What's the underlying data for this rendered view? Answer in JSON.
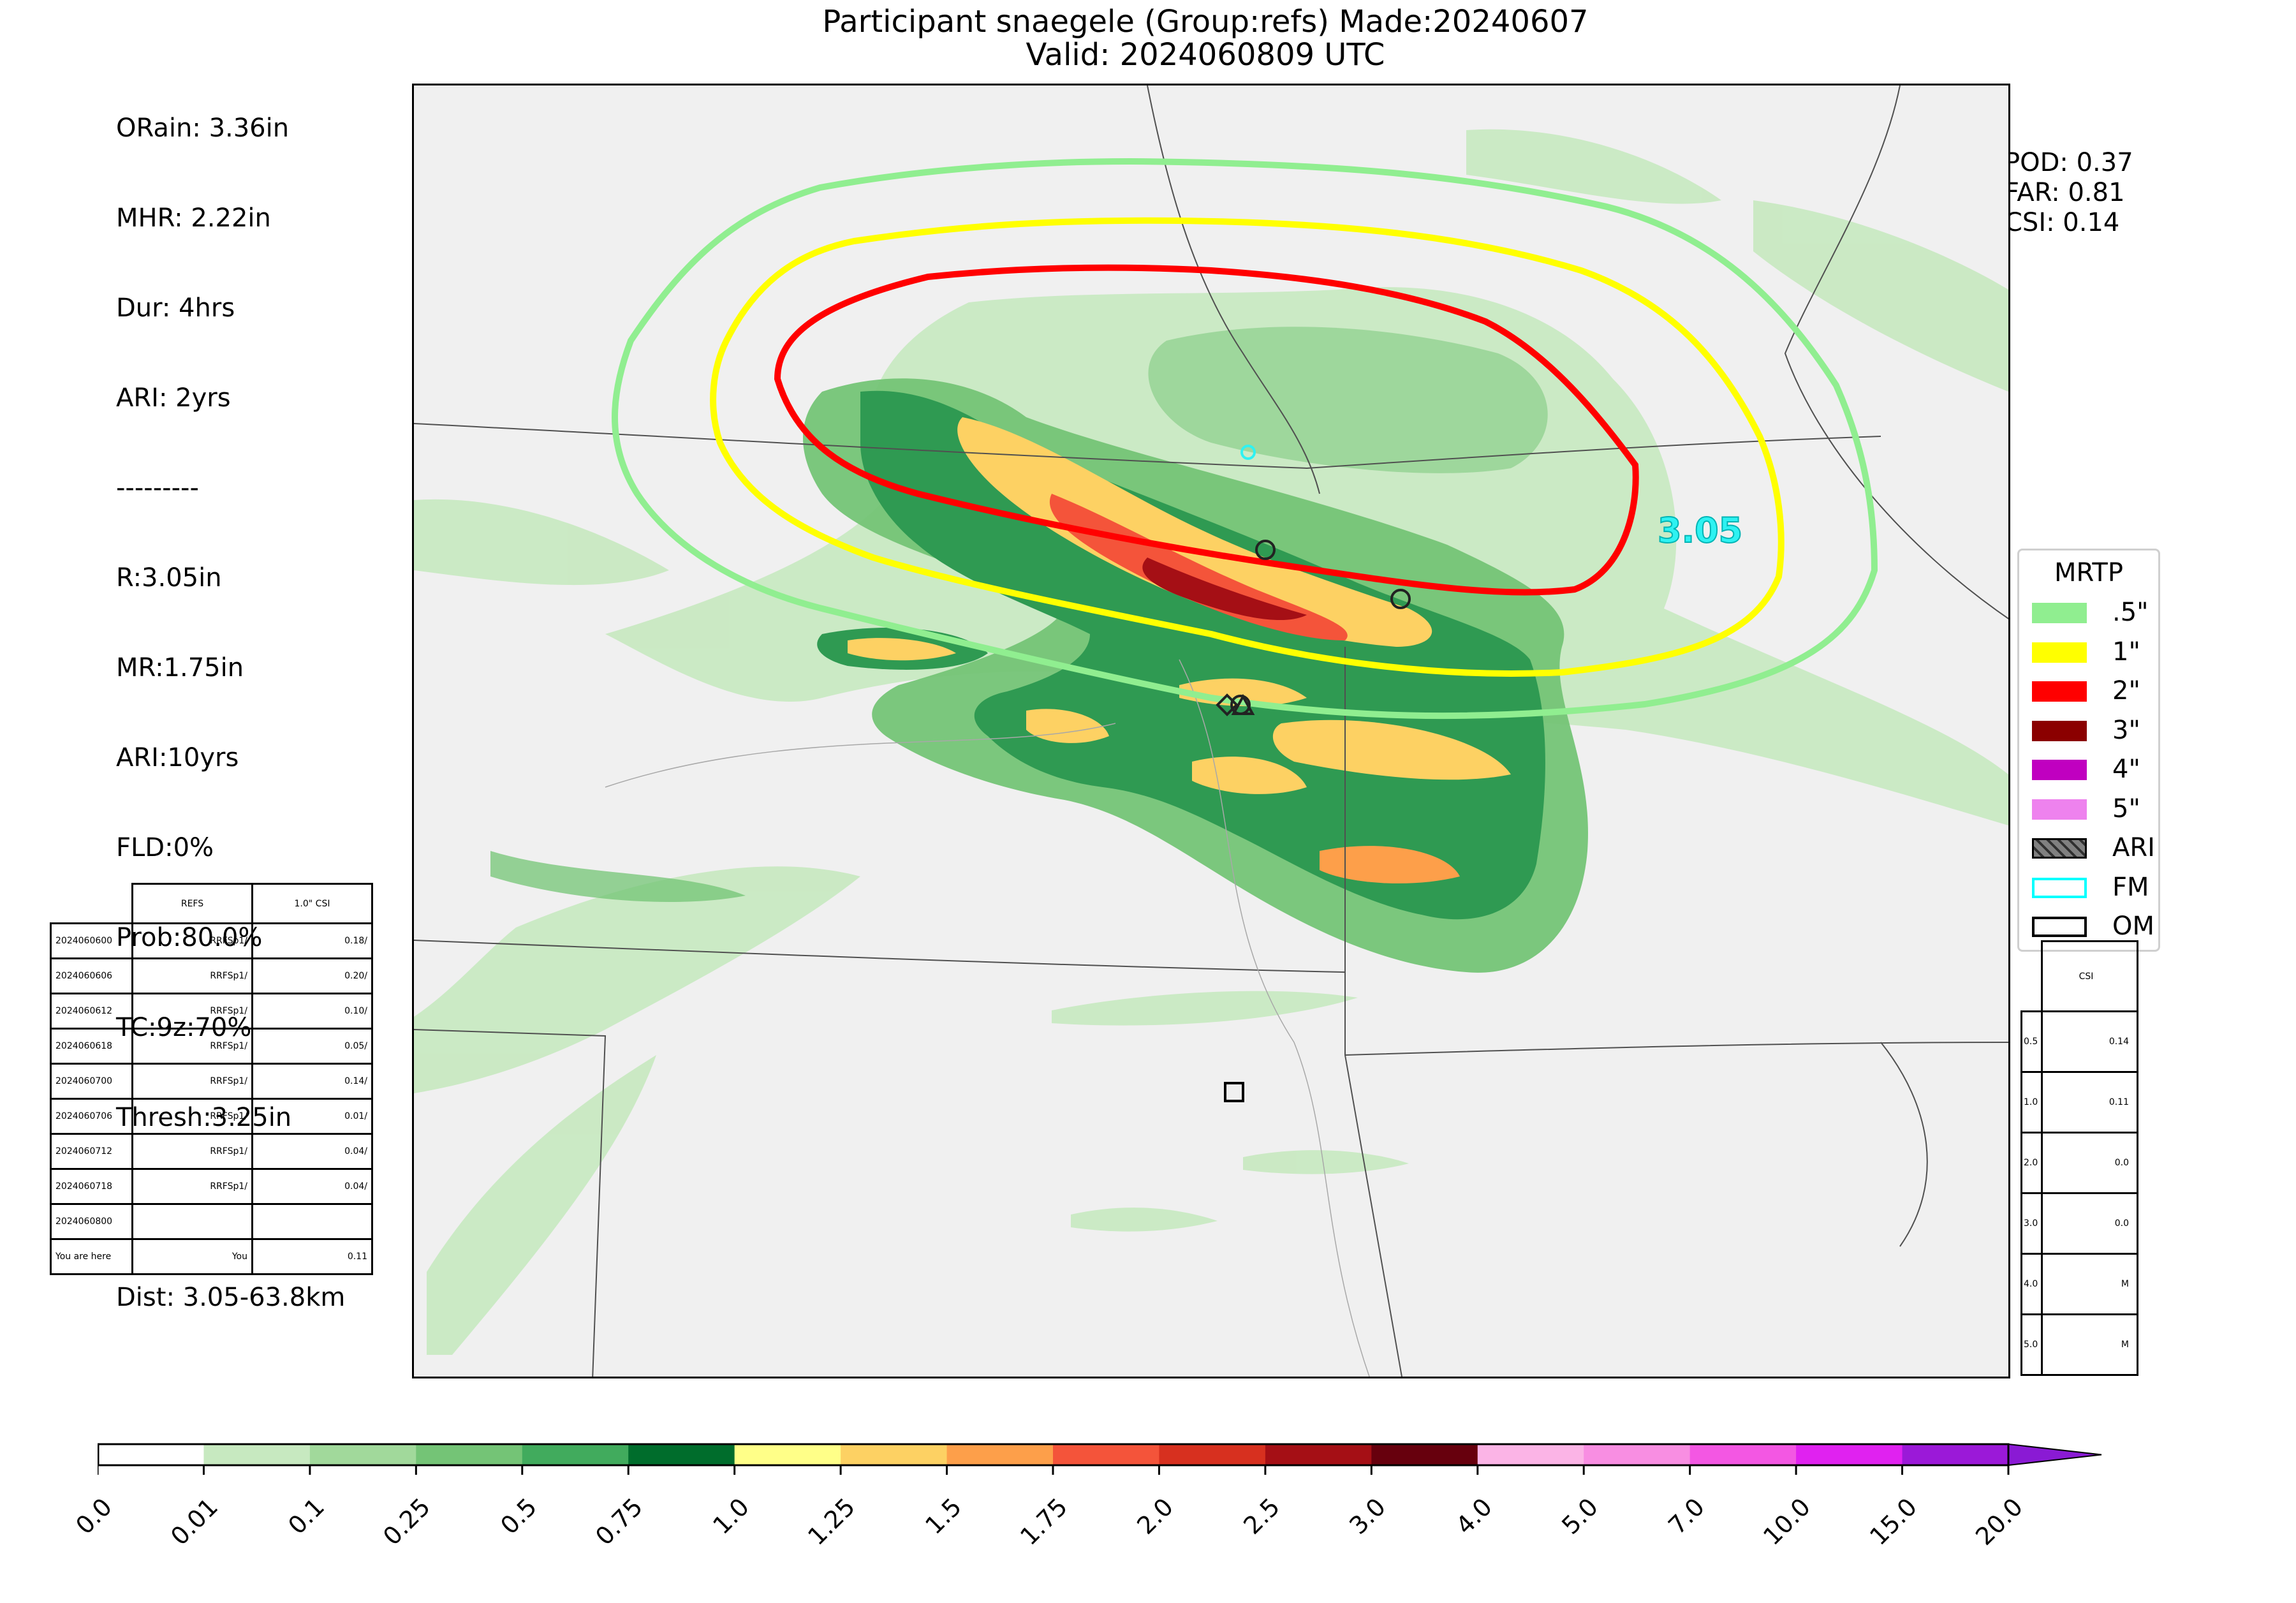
{
  "title": {
    "line1": "Participant snaegele (Group:refs) Made:20240607",
    "line2": "Valid: 2024060809 UTC"
  },
  "info_left": {
    "lines": [
      "ORain: 3.36in",
      "MHR: 2.22in",
      "Dur: 4hrs",
      "ARI: 2yrs",
      "---------",
      "R:3.05in",
      "MR:1.75in",
      "ARI:10yrs",
      "FLD:0%",
      "Prob:80.0%",
      "TC:9z:70%",
      "Thresh:3.25in",
      "",
      "Dist: 3.05-63.8km"
    ]
  },
  "stats_right": {
    "pod": "POD: 0.37",
    "far": "FAR: 0.81",
    "csi": "CSI: 0.14"
  },
  "forecast_marker_label": "3.05",
  "legend": {
    "title": "MRTP",
    "items": [
      {
        "label": ".5\"",
        "color": "#90ee90",
        "kind": "fill"
      },
      {
        "label": "1\"",
        "color": "#ffff00",
        "kind": "fill"
      },
      {
        "label": "2\"",
        "color": "#ff0000",
        "kind": "fill"
      },
      {
        "label": "3\"",
        "color": "#8b0000",
        "kind": "fill"
      },
      {
        "label": "4\"",
        "color": "#c000c0",
        "kind": "fill"
      },
      {
        "label": "5\"",
        "color": "#ee82ee",
        "kind": "fill"
      },
      {
        "label": "ARI",
        "color": "#808080",
        "kind": "hatch"
      },
      {
        "label": "FM",
        "color": "#00ffff",
        "kind": "outline"
      },
      {
        "label": "OM",
        "color": "#000000",
        "kind": "outline"
      }
    ]
  },
  "left_table": {
    "headers": [
      "",
      "REFS",
      "1.0\" CSI"
    ],
    "rows": [
      [
        "2024060600",
        "RRFSp1/",
        "0.18/"
      ],
      [
        "2024060606",
        "RRFSp1/",
        "0.20/"
      ],
      [
        "2024060612",
        "RRFSp1/",
        "0.10/"
      ],
      [
        "2024060618",
        "RRFSp1/",
        "0.05/"
      ],
      [
        "2024060700",
        "RRFSp1/",
        "0.14/"
      ],
      [
        "2024060706",
        "RRFSp1/",
        "0.01/"
      ],
      [
        "2024060712",
        "RRFSp1/",
        "0.04/"
      ],
      [
        "2024060718",
        "RRFSp1/",
        "0.04/"
      ],
      [
        "2024060800",
        "",
        ""
      ],
      [
        "You are here",
        "You",
        "0.11"
      ]
    ]
  },
  "right_table": {
    "header": "CSI",
    "rows": [
      [
        "0.5",
        "0.14"
      ],
      [
        "1.0",
        "0.11"
      ],
      [
        "2.0",
        "0.0"
      ],
      [
        "3.0",
        "0.0"
      ],
      [
        "4.0",
        "M"
      ],
      [
        "5.0",
        "M"
      ]
    ]
  },
  "colorbar": {
    "ticks": [
      "0.0",
      "0.01",
      "0.1",
      "0.25",
      "0.5",
      "0.75",
      "1.0",
      "1.25",
      "1.5",
      "1.75",
      "2.0",
      "2.5",
      "3.0",
      "4.0",
      "5.0",
      "7.0",
      "10.0",
      "15.0",
      "20.0"
    ],
    "colors": [
      "#ffffff",
      "#c7e9c0",
      "#a1d99b",
      "#74c476",
      "#41ab5d",
      "#006d2c",
      "#ffff88",
      "#fdd163",
      "#fd9f4a",
      "#f4543a",
      "#d7301f",
      "#a50f15",
      "#67000d",
      "#fbb4e6",
      "#f88ee2",
      "#f357e3",
      "#e022f0",
      "#9b19d8"
    ],
    "extend_color": "#8a1ad4"
  },
  "map": {
    "background": "#f0f0f0",
    "contour_colors": {
      "half": "#90ee90",
      "one": "#ffff00",
      "two": "#ff0000"
    }
  }
}
